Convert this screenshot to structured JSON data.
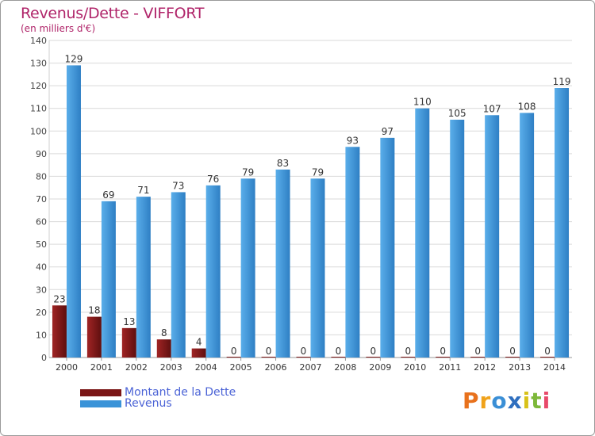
{
  "chart_data": {
    "type": "bar",
    "title": "Revenus/Dette - VIFFORT",
    "subtitle": "(en milliers d'€)",
    "categories": [
      "2000",
      "2001",
      "2002",
      "2003",
      "2004",
      "2005",
      "2006",
      "2007",
      "2008",
      "2009",
      "2010",
      "2011",
      "2012",
      "2013",
      "2014"
    ],
    "series": [
      {
        "name": "Montant de la Dette",
        "color": "#7b1616",
        "values": [
          23,
          18,
          13,
          8,
          4,
          0,
          0,
          0,
          0,
          0,
          0,
          0,
          0,
          0,
          0
        ]
      },
      {
        "name": "Revenus",
        "color": "#3a93d8",
        "values": [
          129,
          69,
          71,
          73,
          76,
          79,
          83,
          79,
          93,
          97,
          110,
          105,
          107,
          108,
          119
        ]
      }
    ],
    "ylim": [
      0,
      140
    ],
    "yticks": [
      0,
      10,
      20,
      30,
      40,
      50,
      60,
      70,
      80,
      90,
      100,
      110,
      120,
      130,
      140
    ],
    "grid": true,
    "legend_position": "bottom-left"
  },
  "logo": {
    "letters": [
      "P",
      "r",
      "o",
      "x",
      "i",
      "t",
      "i"
    ],
    "colors": [
      "#e8711c",
      "#f0a21a",
      "#3a8fd6",
      "#2f6fbf",
      "#d8c21a",
      "#7db83a",
      "#e84a6a"
    ]
  }
}
